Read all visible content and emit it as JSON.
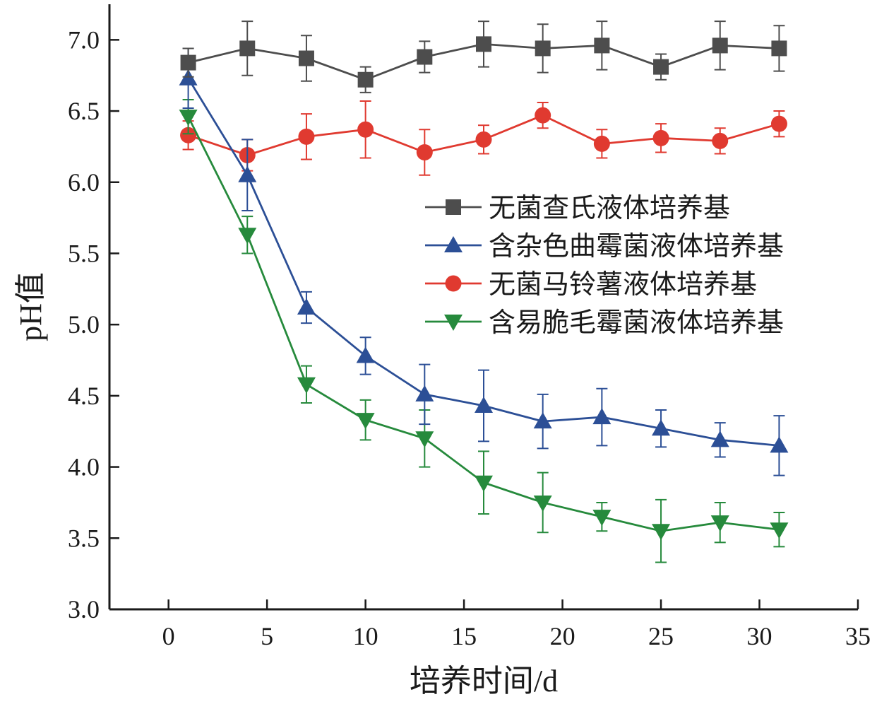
{
  "chart_data": {
    "type": "line",
    "title": "",
    "xlabel": "培养时间/d",
    "ylabel": "pH值",
    "xlim": [
      -3,
      35
    ],
    "ylim": [
      3.0,
      7.25
    ],
    "xticks": [
      0,
      5,
      10,
      15,
      20,
      25,
      30,
      35
    ],
    "yticks": [
      3.0,
      3.5,
      4.0,
      4.5,
      5.0,
      5.5,
      6.0,
      6.5,
      7.0
    ],
    "xtick_labels": [
      "0",
      "5",
      "10",
      "15",
      "20",
      "25",
      "30",
      "35"
    ],
    "ytick_labels": [
      "3.0",
      "3.5",
      "4.0",
      "4.5",
      "5.0",
      "5.5",
      "6.0",
      "6.5",
      "7.0"
    ],
    "grid": false,
    "legend_position": "center-right",
    "x": [
      1,
      4,
      7,
      10,
      13,
      16,
      19,
      22,
      25,
      28,
      31
    ],
    "series": [
      {
        "name": "无菌查氏液体培养基",
        "color": "#4d4d4d",
        "marker": "square",
        "values": [
          6.84,
          6.94,
          6.87,
          6.72,
          6.88,
          6.97,
          6.94,
          6.96,
          6.81,
          6.96,
          6.94
        ],
        "errors": [
          0.1,
          0.19,
          0.16,
          0.09,
          0.11,
          0.16,
          0.17,
          0.17,
          0.09,
          0.17,
          0.16
        ]
      },
      {
        "name": "含杂色曲霉菌液体培养基",
        "color": "#2c4f96",
        "marker": "triangle-up",
        "values": [
          6.73,
          6.05,
          5.12,
          4.78,
          4.51,
          4.43,
          4.32,
          4.35,
          4.27,
          4.19,
          4.15
        ],
        "errors": [
          0.21,
          0.25,
          0.11,
          0.13,
          0.21,
          0.25,
          0.19,
          0.2,
          0.13,
          0.12,
          0.21
        ]
      },
      {
        "name": "无菌马铃薯液体培养基",
        "color": "#e03a30",
        "marker": "circle",
        "values": [
          6.33,
          6.19,
          6.32,
          6.37,
          6.21,
          6.3,
          6.47,
          6.27,
          6.31,
          6.29,
          6.41
        ],
        "errors": [
          0.1,
          0.11,
          0.16,
          0.2,
          0.16,
          0.1,
          0.09,
          0.1,
          0.1,
          0.09,
          0.09
        ]
      },
      {
        "name": "含易脆毛霉菌液体培养基",
        "color": "#268a3c",
        "marker": "triangle-down",
        "values": [
          6.46,
          5.63,
          4.58,
          4.33,
          4.2,
          3.89,
          3.75,
          3.65,
          3.55,
          3.61,
          3.56
        ],
        "errors": [
          0.12,
          0.13,
          0.13,
          0.14,
          0.2,
          0.22,
          0.21,
          0.1,
          0.22,
          0.14,
          0.12
        ]
      }
    ]
  }
}
